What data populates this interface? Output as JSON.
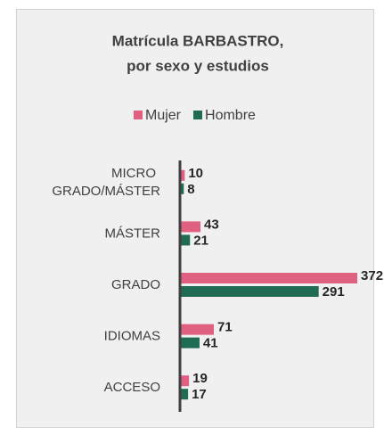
{
  "chart_data": {
    "type": "barh",
    "title": [
      "Matrícula BARBASTRO,",
      "por sexo y estudios"
    ],
    "categories": [
      "MICRO GRADO/MÁSTER",
      "MÁSTER",
      "GRADO",
      "IDIOMAS",
      "ACCESO"
    ],
    "series": [
      {
        "name": "Mujer",
        "color": "#e0617f",
        "values": [
          10,
          43,
          372,
          71,
          19
        ]
      },
      {
        "name": "Hombre",
        "color": "#1f6b53",
        "values": [
          8,
          21,
          291,
          41,
          17
        ]
      }
    ],
    "xlim": [
      0,
      400
    ],
    "legend": "top"
  }
}
